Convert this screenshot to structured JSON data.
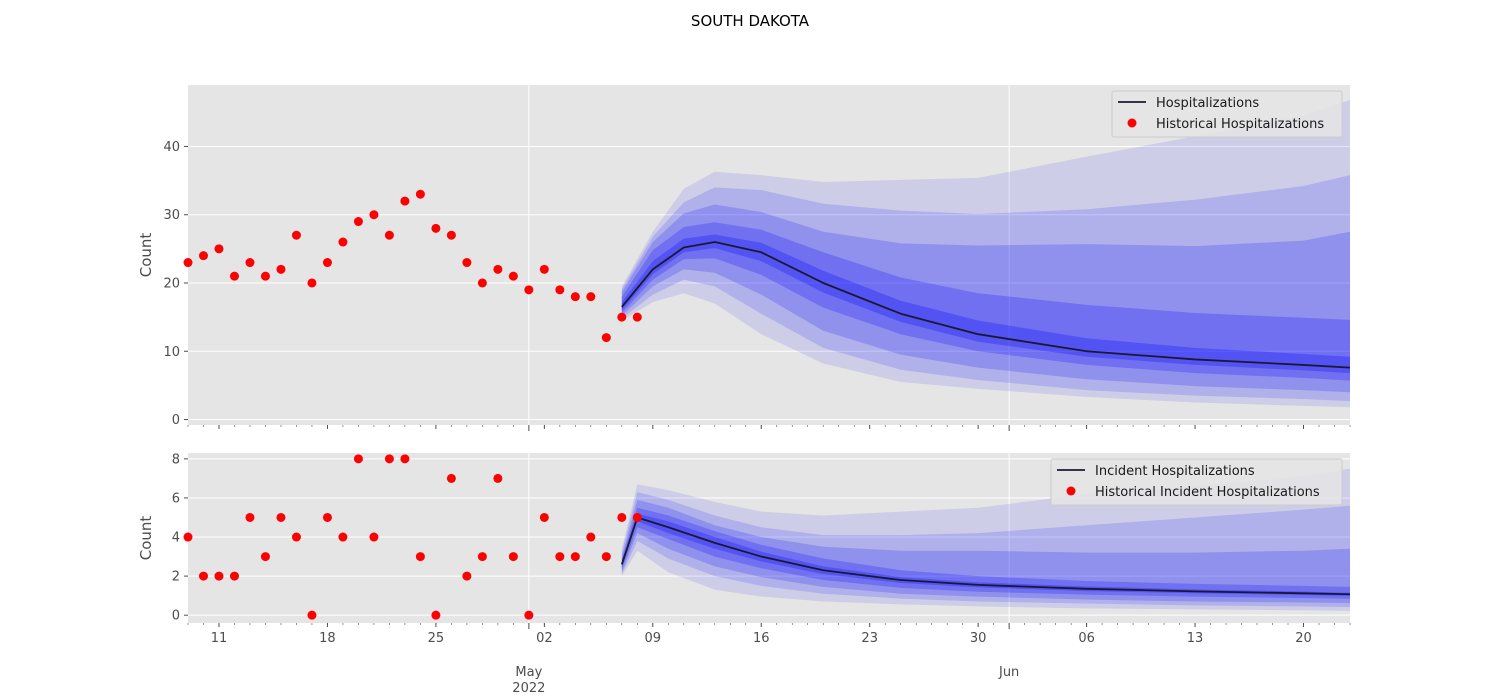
{
  "title": "SOUTH DAKOTA",
  "colors": {
    "panel_bg": "#e5e5e5",
    "grid": "#ffffff",
    "band": "#0000ff",
    "median_line": "#1a1a2e",
    "points": "#ff0000",
    "tick_text": "#4d4d4d"
  },
  "x_axis": {
    "type": "date",
    "range": [
      "2022-04-09",
      "2022-06-23"
    ],
    "tick_labels": [
      {
        "date": "2022-04-11",
        "label": "11"
      },
      {
        "date": "2022-04-18",
        "label": "18"
      },
      {
        "date": "2022-04-25",
        "label": "25"
      },
      {
        "date": "2022-05-02",
        "label": "02"
      },
      {
        "date": "2022-05-09",
        "label": "09"
      },
      {
        "date": "2022-05-16",
        "label": "16"
      },
      {
        "date": "2022-05-23",
        "label": "23"
      },
      {
        "date": "2022-05-30",
        "label": "30"
      },
      {
        "date": "2022-06-06",
        "label": "06"
      },
      {
        "date": "2022-06-13",
        "label": "13"
      },
      {
        "date": "2022-06-20",
        "label": "20"
      }
    ],
    "month_labels": [
      {
        "date": "2022-05-01",
        "label": "May",
        "sublabel": "2022"
      },
      {
        "date": "2022-06-01",
        "label": "Jun",
        "sublabel": ""
      }
    ],
    "major_gridlines": [
      "2022-05-01",
      "2022-06-01"
    ]
  },
  "chart_data": [
    {
      "type": "line",
      "name": "hospitalizations",
      "ylabel": "Count",
      "ylim": [
        -0.8,
        49
      ],
      "yticks": [
        0,
        10,
        20,
        30,
        40
      ],
      "grid": true,
      "legend_placement": "top-right",
      "legend": [
        "Hospitalizations",
        "Historical Hospitalizations"
      ],
      "forecast_start": "2022-05-07",
      "historical": {
        "start": "2022-04-09",
        "values": [
          23,
          24,
          25,
          21,
          23,
          21,
          22,
          27,
          20,
          23,
          26,
          29,
          30,
          27,
          32,
          33,
          28,
          27,
          23,
          20,
          22,
          21,
          19,
          22,
          19,
          18,
          18,
          12,
          15,
          15
        ]
      },
      "forecast": {
        "x": [
          "2022-05-07",
          "2022-05-09",
          "2022-05-11",
          "2022-05-13",
          "2022-05-16",
          "2022-05-20",
          "2022-05-25",
          "2022-05-30",
          "2022-06-06",
          "2022-06-13",
          "2022-06-20",
          "2022-06-23"
        ],
        "median": [
          16.5,
          22,
          25.2,
          26,
          24.5,
          20,
          15.5,
          12.5,
          10,
          8.8,
          8,
          7.6
        ],
        "bands": [
          {
            "lower": [
              14.5,
              17.2,
              18.5,
              17,
              12.5,
              8.2,
              5.5,
              4.5,
              3.3,
              2.5,
              2,
              1.8
            ],
            "upper": [
              19.5,
              27.5,
              33.8,
              36.3,
              35.8,
              34.8,
              35.1,
              35.4,
              38.5,
              41.5,
              44.5,
              46.8
            ]
          },
          {
            "lower": [
              14.8,
              18.3,
              20.5,
              19.5,
              15.5,
              10.5,
              7.3,
              5.8,
              4.3,
              3.5,
              3,
              2.7
            ],
            "upper": [
              19.1,
              26.8,
              31.8,
              34,
              33.6,
              31.6,
              30.6,
              30.1,
              30.8,
              32.2,
              34.2,
              35.8
            ]
          },
          {
            "lower": [
              15.2,
              19.5,
              22,
              21.5,
              18.3,
              13,
              9.5,
              7.6,
              5.9,
              4.9,
              4.3,
              4
            ],
            "upper": [
              18.7,
              26,
              30.2,
              31.5,
              30.4,
              27.5,
              25.8,
              25.5,
              25.7,
              25.4,
              26.2,
              27.5
            ]
          },
          {
            "lower": [
              15.6,
              20.5,
              23.5,
              23.6,
              21.2,
              16.4,
              12.5,
              10,
              8,
              6.8,
              6.1,
              5.7
            ],
            "upper": [
              18,
              24.8,
              28.2,
              28.9,
              27.8,
              24.5,
              20.8,
              18.5,
              16.8,
              15.6,
              14.9,
              14.6
            ]
          },
          {
            "lower": [
              16,
              21.3,
              24.5,
              25.1,
              23.2,
              18.6,
              14.3,
              11.4,
              9.2,
              8,
              7.2,
              6.8
            ],
            "upper": [
              17.2,
              23.2,
              26.5,
              27.1,
              25.9,
              21.8,
              17.4,
              14.5,
              11.9,
              10.5,
              9.6,
              9.2
            ]
          }
        ]
      }
    },
    {
      "type": "line",
      "name": "incident",
      "ylabel": "Count",
      "ylim": [
        -0.4,
        8.3
      ],
      "yticks": [
        0,
        2,
        4,
        6,
        8
      ],
      "grid": true,
      "legend_placement": "top-right",
      "legend": [
        "Incident Hospitalizations",
        "Historical Incident Hospitalizations"
      ],
      "forecast_start": "2022-05-07",
      "historical": {
        "start": "2022-04-09",
        "values": [
          4,
          2,
          2,
          2,
          5,
          3,
          5,
          4,
          0,
          5,
          4,
          8,
          4,
          8,
          8,
          3,
          0,
          7,
          2,
          3,
          7,
          3,
          0,
          5,
          3,
          3,
          4,
          3,
          5,
          5
        ]
      },
      "forecast": {
        "x": [
          "2022-05-07",
          "2022-05-08",
          "2022-05-10",
          "2022-05-13",
          "2022-05-16",
          "2022-05-20",
          "2022-05-25",
          "2022-05-30",
          "2022-06-06",
          "2022-06-13",
          "2022-06-20",
          "2022-06-23"
        ],
        "median": [
          2.6,
          5,
          4.5,
          3.7,
          3,
          2.3,
          1.8,
          1.55,
          1.35,
          1.22,
          1.12,
          1.07
        ],
        "bands": [
          {
            "lower": [
              2,
              3.3,
              2.2,
              1.3,
              0.95,
              0.7,
              0.55,
              0.45,
              0.35,
              0.3,
              0.25,
              0.22
            ],
            "upper": [
              3.4,
              6.7,
              6.4,
              5.8,
              5.3,
              5.1,
              5.3,
              5.5,
              6.2,
              6.6,
              7.1,
              7.5
            ]
          },
          {
            "lower": [
              2.1,
              3.8,
              2.9,
              2,
              1.5,
              1.1,
              0.85,
              0.7,
              0.6,
              0.5,
              0.45,
              0.42
            ],
            "upper": [
              3.2,
              6.3,
              5.9,
              5.1,
              4.5,
              4.1,
              4.1,
              4.2,
              4.6,
              5,
              5.4,
              5.6
            ]
          },
          {
            "lower": [
              2.2,
              4.2,
              3.4,
              2.5,
              1.95,
              1.45,
              1.1,
              0.95,
              0.8,
              0.7,
              0.65,
              0.62
            ],
            "upper": [
              3,
              5.9,
              5.5,
              4.6,
              4,
              3.5,
              3.3,
              3.3,
              3.2,
              3.2,
              3.3,
              3.4
            ]
          },
          {
            "lower": [
              2.35,
              4.5,
              3.9,
              3,
              2.4,
              1.8,
              1.4,
              1.2,
              1.05,
              0.95,
              0.88,
              0.84
            ],
            "upper": [
              2.85,
              5.5,
              5.1,
              4.3,
              3.6,
              2.9,
              2.3,
              2,
              1.75,
              1.6,
              1.5,
              1.45
            ]
          },
          {
            "lower": [
              2.45,
              4.8,
              4.2,
              3.4,
              2.75,
              2.1,
              1.65,
              1.42,
              1.23,
              1.12,
              1.03,
              0.99
            ],
            "upper": [
              2.75,
              5.2,
              4.8,
              4,
              3.25,
              2.5,
              1.95,
              1.68,
              1.47,
              1.32,
              1.21,
              1.15
            ]
          }
        ]
      }
    }
  ]
}
